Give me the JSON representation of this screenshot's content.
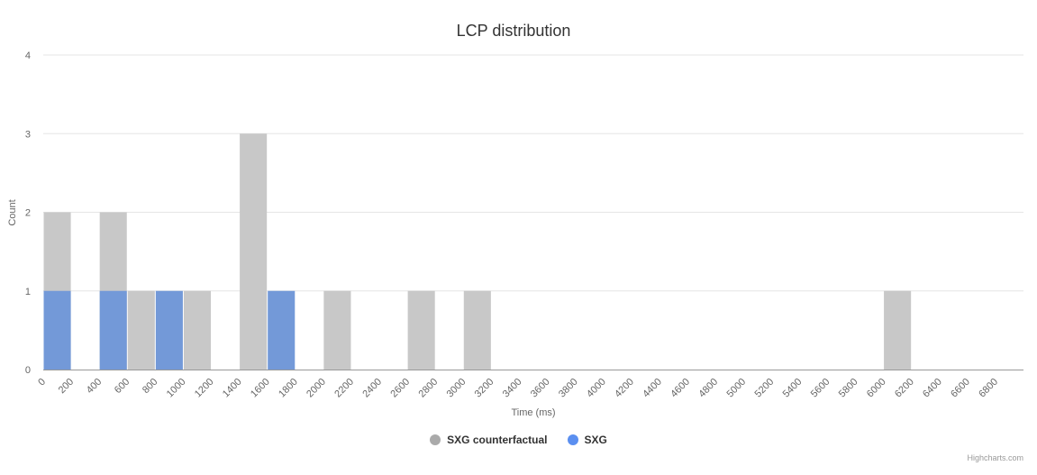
{
  "chart_data": {
    "type": "bar",
    "title": "LCP distribution",
    "xlabel": "Time (ms)",
    "ylabel": "Count",
    "xlim": [
      0,
      7000
    ],
    "ylim": [
      0,
      4
    ],
    "bin_width": 200,
    "x_ticks": [
      0,
      200,
      400,
      600,
      800,
      1000,
      1200,
      1400,
      1600,
      1800,
      2000,
      2200,
      2400,
      2600,
      2800,
      3000,
      3200,
      3400,
      3600,
      3800,
      4000,
      4200,
      4400,
      4600,
      4800,
      5000,
      5200,
      5400,
      5600,
      5800,
      6000,
      6200,
      6400,
      6600,
      6800
    ],
    "y_ticks": [
      0,
      1,
      2,
      3,
      4
    ],
    "grid": true,
    "legend_position": "bottom",
    "series": [
      {
        "name": "SXG counterfactual",
        "color": "#c8c8c8",
        "legend_color": "#aaaaaa",
        "bins": [
          {
            "x": 0,
            "y": 2
          },
          {
            "x": 400,
            "y": 2
          },
          {
            "x": 600,
            "y": 1
          },
          {
            "x": 1000,
            "y": 1
          },
          {
            "x": 1400,
            "y": 3
          },
          {
            "x": 2000,
            "y": 1
          },
          {
            "x": 2600,
            "y": 1
          },
          {
            "x": 3000,
            "y": 1
          },
          {
            "x": 6000,
            "y": 1
          }
        ]
      },
      {
        "name": "SXG",
        "color": "#7399d8",
        "legend_color": "#5b8ff0",
        "bins": [
          {
            "x": 0,
            "y": 1
          },
          {
            "x": 400,
            "y": 1
          },
          {
            "x": 800,
            "y": 1
          },
          {
            "x": 1600,
            "y": 1
          }
        ]
      }
    ]
  },
  "credits": "Highcharts.com"
}
